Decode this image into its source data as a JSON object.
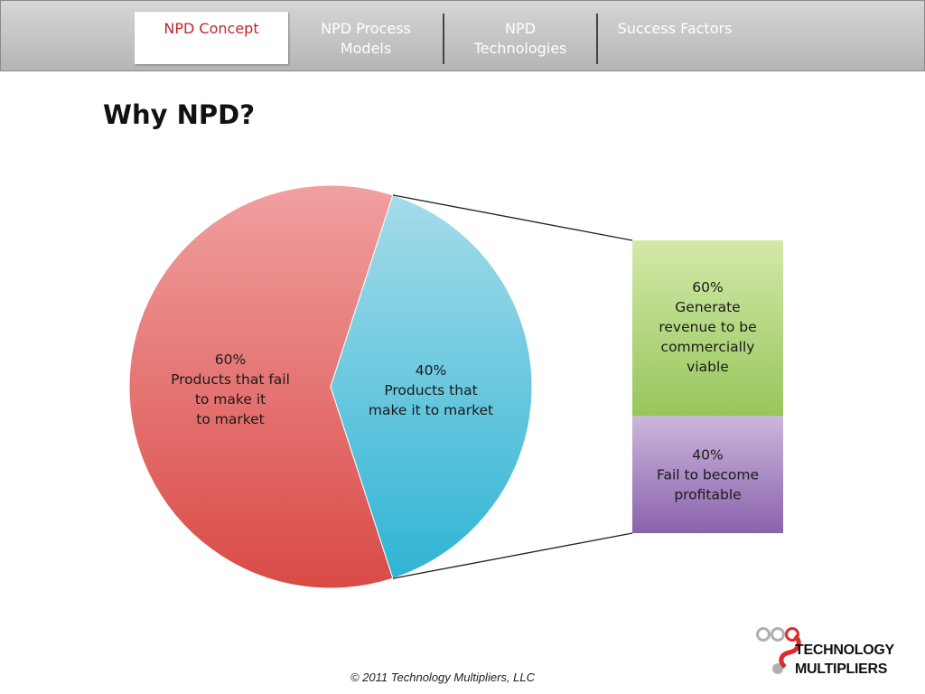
{
  "nav": {
    "tabs": [
      {
        "label": "NPD Concept",
        "active": true
      },
      {
        "label": "NPD Process\nModels",
        "active": false
      },
      {
        "label": "NPD\nTechnologies",
        "active": false
      },
      {
        "label": "Success Factors",
        "active": false
      }
    ]
  },
  "slide": {
    "title": "Why NPD?",
    "footer": "© 2011 Technology Multipliers, LLC"
  },
  "logo": {
    "line1": "TECHNOLOGY",
    "line2": "MULTIPLIERS"
  },
  "colors": {
    "accent_red": "#c0262d",
    "pie_fail": "#e05a5a",
    "pie_make": "#5ec3df",
    "bar_revenue": "#b5d77a",
    "bar_fail": "#a27bbd",
    "logo_red": "#d92c2c",
    "logo_gray": "#b0b0b0"
  },
  "chart_data": {
    "type": "pie",
    "slices": [
      {
        "value": 60,
        "percent_label": "60%",
        "label_lines": [
          "Products that fail",
          "to make it",
          "to market"
        ]
      },
      {
        "value": 40,
        "percent_label": "40%",
        "label_lines": [
          "Products that",
          "make it to market"
        ]
      }
    ],
    "breakdown_of": "40%",
    "breakdown": [
      {
        "value": 60,
        "percent_label": "60%",
        "label_lines": [
          "Generate",
          "revenue to be",
          "commercially",
          "viable"
        ]
      },
      {
        "value": 40,
        "percent_label": "40%",
        "label_lines": [
          "Fail to become",
          "profitable"
        ]
      }
    ]
  }
}
